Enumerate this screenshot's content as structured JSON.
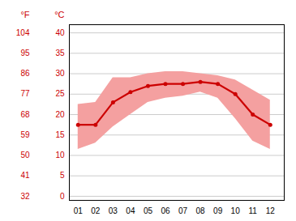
{
  "chart_data": {
    "type": "line",
    "x": [
      1,
      2,
      3,
      4,
      5,
      6,
      7,
      8,
      9,
      10,
      11,
      12
    ],
    "series": [
      {
        "type": "band",
        "color": "#f4a0a0",
        "low": [
          11.5,
          13.0,
          17.0,
          20.0,
          23.0,
          24.0,
          24.5,
          25.5,
          24.0,
          19.0,
          13.5,
          11.5
        ],
        "high": [
          22.5,
          23.0,
          29.0,
          29.0,
          30.0,
          30.5,
          30.5,
          30.0,
          29.5,
          28.5,
          26.0,
          23.5
        ]
      },
      {
        "type": "line",
        "color": "#cc0000",
        "marker": "circle",
        "values": [
          17.5,
          17.5,
          23.0,
          25.5,
          27.0,
          27.5,
          27.5,
          28.0,
          27.5,
          25.0,
          20.0,
          17.5
        ]
      }
    ],
    "xlim": [
      0.5,
      12.8
    ],
    "xticks": [
      {
        "value": 1,
        "label": "01"
      },
      {
        "value": 2,
        "label": "02"
      },
      {
        "value": 3,
        "label": "03"
      },
      {
        "value": 4,
        "label": "04"
      },
      {
        "value": 5,
        "label": "05"
      },
      {
        "value": 6,
        "label": "06"
      },
      {
        "value": 7,
        "label": "07"
      },
      {
        "value": 8,
        "label": "08"
      },
      {
        "value": 9,
        "label": "09"
      },
      {
        "value": 10,
        "label": "10"
      },
      {
        "value": 11,
        "label": "11"
      },
      {
        "value": 12,
        "label": "12"
      }
    ],
    "ylabel": "°C",
    "ylim": [
      -1,
      42
    ],
    "yticks": [
      0,
      5,
      10,
      15,
      20,
      25,
      30,
      35,
      40
    ],
    "y2label": "°F",
    "y2lim": [
      30.2,
      107.6
    ],
    "y2ticks": [
      32,
      41,
      50,
      59,
      68,
      77,
      86,
      95,
      104
    ],
    "grid": true
  }
}
